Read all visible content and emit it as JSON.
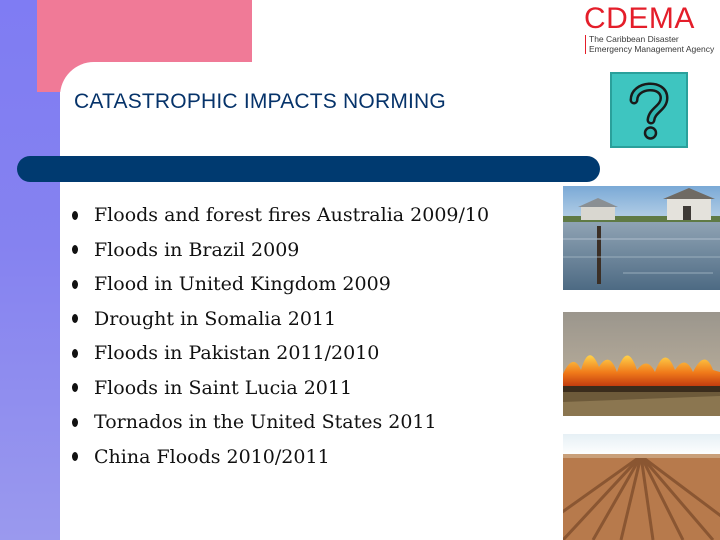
{
  "header": {
    "title": "CATASTROPHIC  IMPACTS NORMING"
  },
  "logo": {
    "name": "CDEMA",
    "subtitle_line1": "The Caribbean Disaster",
    "subtitle_line2": "Emergency Management Agency"
  },
  "help_icon": {
    "icon": "question-mark-icon",
    "glyph": "?"
  },
  "impacts": [
    "Floods and forest fires  Australia 2009/10",
    "Floods in Brazil 2009",
    " Flood in United Kingdom 2009",
    "Drought in Somalia   2011",
    "Floods in Pakistan 2011/2010",
    "Floods in Saint Lucia 2011",
    "Tornados in the United States 2011",
    "China Floods 2010/2011"
  ],
  "photos": [
    {
      "icon": "flood-photo"
    },
    {
      "icon": "wildfire-photo"
    },
    {
      "icon": "drought-field-photo"
    }
  ],
  "colors": {
    "title_bar": "#003a70",
    "title_text": "#06336a",
    "left_band": "#7f7cf3",
    "corner_block": "#f07a97",
    "logo_red": "#e41e2a",
    "help_box": "#3ec5c0"
  }
}
